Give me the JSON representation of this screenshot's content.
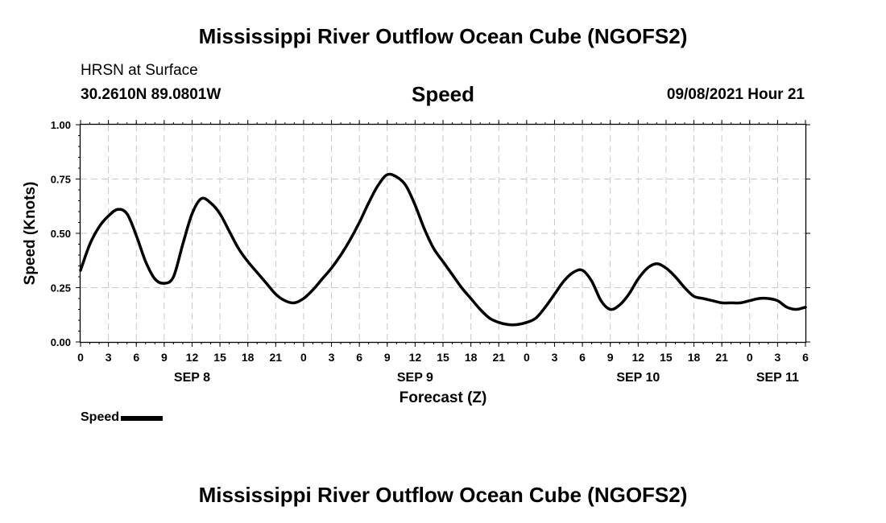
{
  "header": {
    "title": "Mississippi River Outflow Ocean Cube (NGOFS2)",
    "station": "HRSN at Surface",
    "coords": "30.2610N  89.0801W",
    "plot_title": "Speed",
    "datetime": "09/08/2021 Hour 21"
  },
  "footer": {
    "title": "Mississippi River Outflow Ocean Cube (NGOFS2)"
  },
  "legend": {
    "label": "Speed"
  },
  "chart_data": {
    "type": "line",
    "title": "Speed",
    "xlabel": "Forecast (Z)",
    "ylabel": "Speed (Knots)",
    "ylim": [
      0,
      1.0
    ],
    "xlim": [
      0,
      78
    ],
    "x_units": "hours from SEP 8 00Z",
    "grid": true,
    "y_ticks": [
      0,
      0.25,
      0.5,
      0.75,
      1.0
    ],
    "y_tick_labels": [
      "0.00",
      "0.25",
      "0.50",
      "0.75",
      "1.00"
    ],
    "x_ticks": [
      0,
      3,
      6,
      9,
      12,
      15,
      18,
      21,
      24,
      27,
      30,
      33,
      36,
      39,
      42,
      45,
      48,
      51,
      54,
      57,
      60,
      63,
      66,
      69,
      72,
      75,
      78
    ],
    "x_tick_labels": [
      "0",
      "3",
      "6",
      "9",
      "12",
      "15",
      "18",
      "21",
      "0",
      "3",
      "6",
      "9",
      "12",
      "15",
      "18",
      "21",
      "0",
      "3",
      "6",
      "9",
      "12",
      "15",
      "18",
      "21",
      "0",
      "3",
      "6"
    ],
    "day_labels": [
      {
        "x": 12,
        "label": "SEP 8"
      },
      {
        "x": 36,
        "label": "SEP 9"
      },
      {
        "x": 60,
        "label": "SEP 10"
      },
      {
        "x": 75,
        "label": "SEP 11"
      }
    ],
    "series": [
      {
        "name": "Speed",
        "color": "#000000",
        "x": [
          0,
          1,
          2,
          3,
          4,
          5,
          6,
          7,
          8,
          9,
          10,
          11,
          12,
          13,
          14,
          15,
          16,
          17,
          18,
          19,
          20,
          21,
          22,
          23,
          24,
          25,
          26,
          27,
          28,
          29,
          30,
          31,
          32,
          33,
          34,
          35,
          36,
          37,
          38,
          39,
          40,
          41,
          42,
          43,
          44,
          45,
          46,
          47,
          48,
          49,
          50,
          51,
          52,
          53,
          54,
          55,
          56,
          57,
          58,
          59,
          60,
          61,
          62,
          63,
          64,
          65,
          66,
          67,
          68,
          69,
          70,
          71,
          72,
          73,
          74,
          75,
          76,
          77,
          78
        ],
        "values": [
          0.33,
          0.45,
          0.53,
          0.58,
          0.61,
          0.59,
          0.49,
          0.37,
          0.29,
          0.27,
          0.3,
          0.45,
          0.59,
          0.66,
          0.64,
          0.59,
          0.51,
          0.43,
          0.37,
          0.32,
          0.27,
          0.22,
          0.19,
          0.18,
          0.2,
          0.24,
          0.29,
          0.34,
          0.4,
          0.47,
          0.55,
          0.64,
          0.72,
          0.77,
          0.76,
          0.72,
          0.63,
          0.52,
          0.43,
          0.37,
          0.31,
          0.25,
          0.2,
          0.15,
          0.11,
          0.09,
          0.08,
          0.08,
          0.09,
          0.11,
          0.16,
          0.22,
          0.28,
          0.32,
          0.33,
          0.28,
          0.19,
          0.15,
          0.17,
          0.22,
          0.29,
          0.34,
          0.36,
          0.34,
          0.3,
          0.25,
          0.21,
          0.2,
          0.19,
          0.18,
          0.18,
          0.18,
          0.19,
          0.2,
          0.2,
          0.19,
          0.16,
          0.15,
          0.16
        ]
      }
    ]
  }
}
